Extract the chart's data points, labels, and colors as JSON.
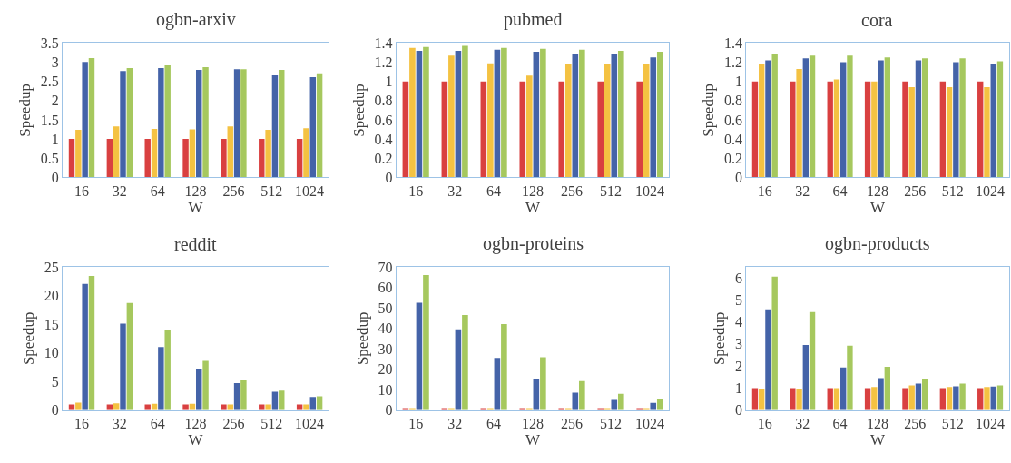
{
  "chart_data": [
    {
      "type": "bar",
      "title": "ogbn-arxiv",
      "xlabel": "W",
      "ylabel": "Speedup",
      "categories": [
        "16",
        "32",
        "64",
        "128",
        "256",
        "512",
        "1024"
      ],
      "ylim": [
        0,
        3.5
      ],
      "yticks": [
        0,
        0.5,
        1,
        1.5,
        2,
        2.5,
        3,
        3.5
      ],
      "series": [
        {
          "color": "#d94040",
          "values": [
            1,
            1,
            1,
            1,
            1,
            1,
            1
          ]
        },
        {
          "color": "#f4c242",
          "values": [
            1.24,
            1.33,
            1.26,
            1.25,
            1.33,
            1.24,
            1.28
          ]
        },
        {
          "color": "#4463a8",
          "values": [
            3.01,
            2.77,
            2.85,
            2.8,
            2.82,
            2.66,
            2.61
          ]
        },
        {
          "color": "#a6c85e",
          "values": [
            3.11,
            2.85,
            2.92,
            2.87,
            2.82,
            2.8,
            2.71
          ]
        }
      ]
    },
    {
      "type": "bar",
      "title": "pubmed",
      "xlabel": "W",
      "ylabel": "Speedup",
      "categories": [
        "16",
        "32",
        "64",
        "128",
        "256",
        "512",
        "1024"
      ],
      "ylim": [
        0,
        1.4
      ],
      "yticks": [
        0,
        0.2,
        0.4,
        0.6,
        0.8,
        1,
        1.2,
        1.4
      ],
      "series": [
        {
          "color": "#d94040",
          "values": [
            1,
            1,
            1,
            1,
            1,
            1,
            1
          ]
        },
        {
          "color": "#f4c242",
          "values": [
            1.35,
            1.27,
            1.19,
            1.06,
            1.18,
            1.18,
            1.18
          ]
        },
        {
          "color": "#4463a8",
          "values": [
            1.32,
            1.32,
            1.33,
            1.31,
            1.28,
            1.28,
            1.25
          ]
        },
        {
          "color": "#a6c85e",
          "values": [
            1.36,
            1.37,
            1.35,
            1.34,
            1.33,
            1.32,
            1.31
          ]
        }
      ]
    },
    {
      "type": "bar",
      "title": "cora",
      "xlabel": "W",
      "ylabel": "Speedup",
      "categories": [
        "16",
        "32",
        "64",
        "128",
        "256",
        "512",
        "1024"
      ],
      "ylim": [
        0,
        1.4
      ],
      "yticks": [
        0,
        0.2,
        0.4,
        0.6,
        0.8,
        1,
        1.2,
        1.4
      ],
      "series": [
        {
          "color": "#d94040",
          "values": [
            1,
            1,
            1,
            1,
            1,
            1,
            1
          ]
        },
        {
          "color": "#f4c242",
          "values": [
            1.18,
            1.13,
            1.02,
            1.0,
            0.94,
            0.94,
            0.94
          ]
        },
        {
          "color": "#4463a8",
          "values": [
            1.22,
            1.24,
            1.2,
            1.22,
            1.22,
            1.2,
            1.18
          ]
        },
        {
          "color": "#a6c85e",
          "values": [
            1.28,
            1.27,
            1.27,
            1.25,
            1.24,
            1.24,
            1.21
          ]
        }
      ]
    },
    {
      "type": "bar",
      "title": "reddit",
      "xlabel": "W",
      "ylabel": "Speedup",
      "categories": [
        "16",
        "32",
        "64",
        "128",
        "256",
        "512",
        "1024"
      ],
      "ylim": [
        0,
        25
      ],
      "yticks": [
        0,
        5,
        10,
        15,
        20,
        25
      ],
      "series": [
        {
          "color": "#d94040",
          "values": [
            1,
            1,
            1,
            1,
            1,
            1,
            1
          ]
        },
        {
          "color": "#f4c242",
          "values": [
            1.3,
            1.2,
            1.1,
            1.1,
            1.0,
            1.0,
            1.0
          ]
        },
        {
          "color": "#4463a8",
          "values": [
            22,
            15.1,
            11,
            7.2,
            4.7,
            3.2,
            2.3
          ]
        },
        {
          "color": "#a6c85e",
          "values": [
            23.4,
            18.7,
            13.9,
            8.6,
            5.2,
            3.4,
            2.4
          ]
        }
      ]
    },
    {
      "type": "bar",
      "title": "ogbn-proteins",
      "xlabel": "W",
      "ylabel": "Speedup",
      "categories": [
        "16",
        "32",
        "64",
        "128",
        "256",
        "512",
        "1024"
      ],
      "ylim": [
        0,
        70
      ],
      "yticks": [
        0,
        10,
        20,
        30,
        40,
        50,
        60,
        70
      ],
      "series": [
        {
          "color": "#d94040",
          "values": [
            1,
            1,
            1,
            1,
            1,
            1,
            1
          ]
        },
        {
          "color": "#f4c242",
          "values": [
            1,
            1,
            1,
            1,
            1,
            1,
            1
          ]
        },
        {
          "color": "#4463a8",
          "values": [
            52.5,
            39.5,
            25.5,
            15,
            8.5,
            5,
            3.5
          ]
        },
        {
          "color": "#a6c85e",
          "values": [
            66,
            46.5,
            42,
            25.8,
            14.2,
            8,
            5.2
          ]
        }
      ]
    },
    {
      "type": "bar",
      "title": "ogbn-products",
      "xlabel": "W",
      "ylabel": "Speedup",
      "categories": [
        "16",
        "32",
        "64",
        "128",
        "256",
        "512",
        "1024"
      ],
      "ylim": [
        0,
        6.5
      ],
      "yticks": [
        0,
        1,
        2,
        3,
        4,
        5,
        6
      ],
      "series": [
        {
          "color": "#d94040",
          "values": [
            1,
            1,
            1,
            1,
            1,
            1,
            1
          ]
        },
        {
          "color": "#f4c242",
          "values": [
            0.98,
            0.98,
            1.0,
            1.05,
            1.12,
            1.05,
            1.05
          ]
        },
        {
          "color": "#4463a8",
          "values": [
            4.57,
            2.95,
            1.93,
            1.45,
            1.2,
            1.08,
            1.07
          ]
        },
        {
          "color": "#a6c85e",
          "values": [
            6.05,
            4.45,
            2.92,
            1.97,
            1.43,
            1.2,
            1.12
          ]
        }
      ]
    }
  ]
}
